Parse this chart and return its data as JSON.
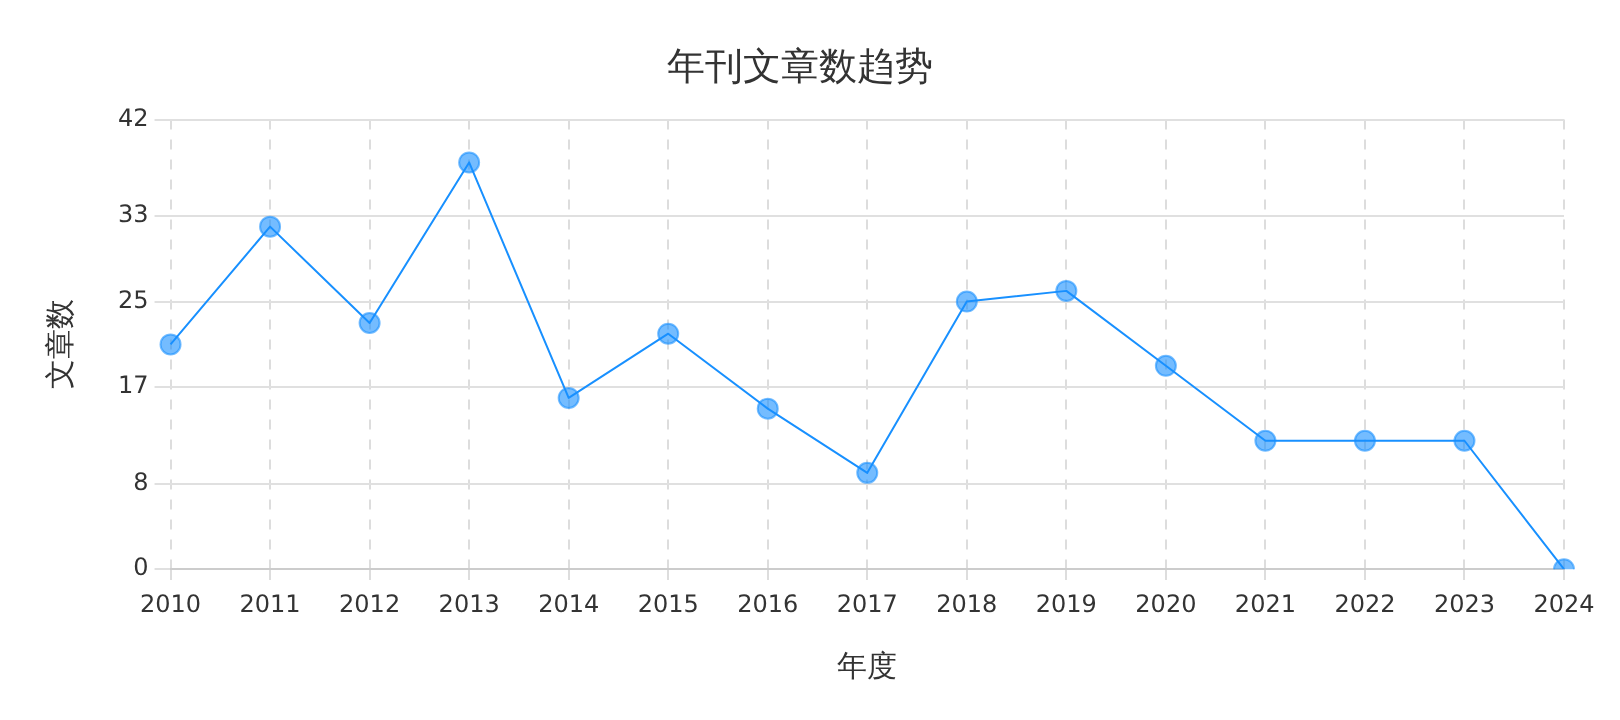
{
  "chart_data": {
    "type": "line",
    "title": "年刊文章数趋势",
    "xlabel": "年度",
    "ylabel": "文章数",
    "categories": [
      "2010",
      "2011",
      "2012",
      "2013",
      "2014",
      "2015",
      "2016",
      "2017",
      "2018",
      "2019",
      "2020",
      "2021",
      "2022",
      "2023",
      "2024"
    ],
    "series": [
      {
        "color": "#1890ff",
        "values": [
          21,
          32,
          23,
          38,
          16,
          22,
          15,
          9,
          25,
          26,
          19,
          12,
          12,
          12,
          0
        ]
      }
    ],
    "ylim": [
      0,
      42
    ],
    "yticks": [
      0,
      8,
      17,
      25,
      33,
      42
    ],
    "grid": true,
    "marker": "circle",
    "line_style": "solid",
    "legend": false
  }
}
